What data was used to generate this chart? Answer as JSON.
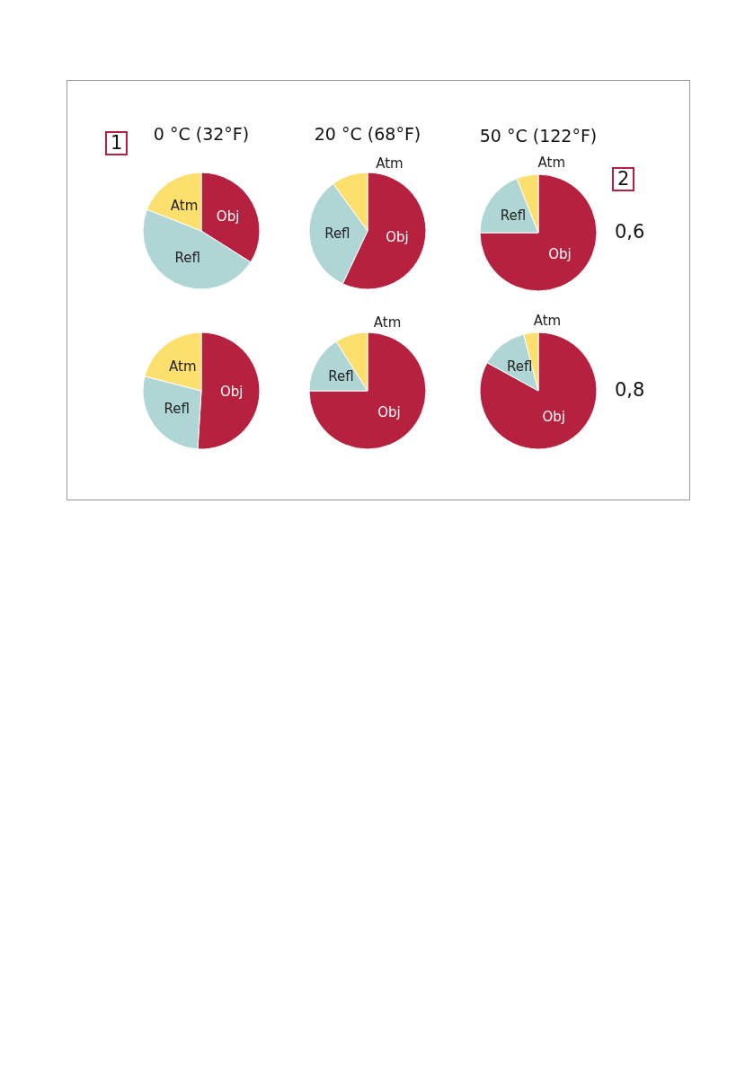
{
  "chart_data": [
    {
      "type": "pie",
      "title": "0 °C (32°F)",
      "categories": [
        "Obj",
        "Refl",
        "Atm"
      ],
      "values": [
        34,
        47,
        19
      ],
      "colors": [
        "#b72140",
        "#afd5d5",
        "#fcdf6c"
      ],
      "annotations": [
        "1"
      ]
    },
    {
      "type": "pie",
      "title": "20 °C (68°F)",
      "categories": [
        "Obj",
        "Refl",
        "Atm"
      ],
      "values": [
        57,
        33,
        10
      ],
      "colors": [
        "#b72140",
        "#afd5d5",
        "#fcdf6c"
      ]
    },
    {
      "type": "pie",
      "title": "50 °C (122°F)",
      "categories": [
        "Obj",
        "Refl",
        "Atm"
      ],
      "values": [
        75,
        19,
        6
      ],
      "colors": [
        "#b72140",
        "#afd5d5",
        "#fcdf6c"
      ],
      "annotations": [
        "2",
        "0,6"
      ]
    },
    {
      "type": "pie",
      "categories": [
        "Obj",
        "Refl",
        "Atm"
      ],
      "values": [
        51,
        28,
        21
      ],
      "colors": [
        "#b72140",
        "#afd5d5",
        "#fcdf6c"
      ]
    },
    {
      "type": "pie",
      "categories": [
        "Obj",
        "Refl",
        "Atm"
      ],
      "values": [
        75,
        16,
        9
      ],
      "colors": [
        "#b72140",
        "#afd5d5",
        "#fcdf6c"
      ]
    },
    {
      "type": "pie",
      "categories": [
        "Obj",
        "Refl",
        "Atm"
      ],
      "values": [
        83,
        13,
        4
      ],
      "colors": [
        "#b72140",
        "#afd5d5",
        "#fcdf6c"
      ],
      "annotations": [
        "0,8"
      ]
    }
  ]
}
